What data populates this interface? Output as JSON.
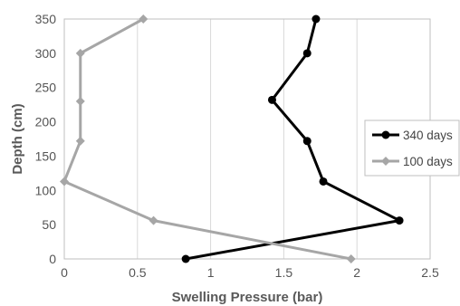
{
  "chart_data": {
    "type": "line",
    "title": "",
    "xlabel": "Swelling Pressure (bar)",
    "ylabel": "Depth (cm)",
    "xlim": [
      0,
      2.5
    ],
    "ylim": [
      0,
      350
    ],
    "xticks": [
      "0",
      "0.5",
      "1",
      "1.5",
      "2",
      "2.5"
    ],
    "yticks": [
      "0",
      "50",
      "100",
      "150",
      "200",
      "250",
      "300",
      "350"
    ],
    "grid": "vertical",
    "legend_position": "right",
    "series": [
      {
        "name": "340 days",
        "color": "#000000",
        "marker": "circle",
        "points": [
          {
            "x": 1.72,
            "y": 350
          },
          {
            "x": 1.66,
            "y": 300
          },
          {
            "x": 1.42,
            "y": 232
          },
          {
            "x": 1.66,
            "y": 172
          },
          {
            "x": 1.77,
            "y": 113
          },
          {
            "x": 2.29,
            "y": 56
          },
          {
            "x": 0.83,
            "y": 0
          }
        ]
      },
      {
        "name": "100 days",
        "color": "#a6a6a6",
        "marker": "diamond",
        "points": [
          {
            "x": 0.54,
            "y": 350
          },
          {
            "x": 0.11,
            "y": 300
          },
          {
            "x": 0.11,
            "y": 230
          },
          {
            "x": 0.11,
            "y": 172
          },
          {
            "x": 0.0,
            "y": 113
          },
          {
            "x": 0.61,
            "y": 56
          },
          {
            "x": 1.96,
            "y": 0
          }
        ]
      }
    ]
  }
}
